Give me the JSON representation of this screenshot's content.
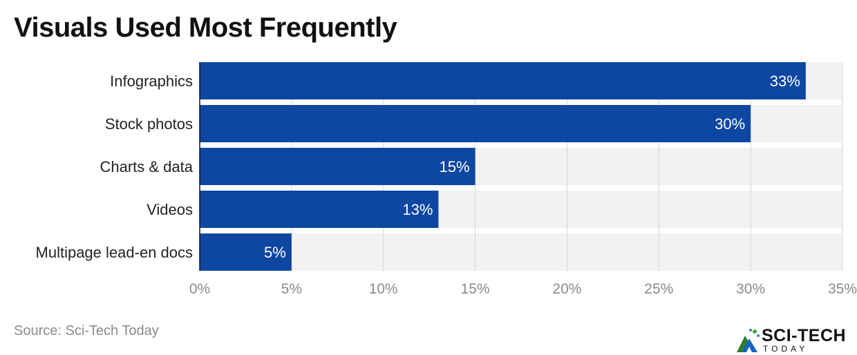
{
  "title": "Visuals Used Most Frequently",
  "source": "Source: Sci-Tech Today",
  "logo": {
    "main": "SCI-TECH",
    "sub": "TODAY"
  },
  "colors": {
    "bar": "#0d47a1",
    "track": "#f2f2f2",
    "grid": "#d4d4d4",
    "tick": "#8a8a8a",
    "label": "#222222",
    "value_label": "#ffffff"
  },
  "chart_data": {
    "type": "bar",
    "orientation": "horizontal",
    "categories": [
      "Infographics",
      "Stock photos",
      "Charts & data",
      "Videos",
      "Multipage lead-en docs"
    ],
    "values": [
      33,
      30,
      15,
      13,
      5
    ],
    "value_labels": [
      "33%",
      "30%",
      "15%",
      "13%",
      "5%"
    ],
    "xlim": [
      0,
      35
    ],
    "xticks": [
      0,
      5,
      10,
      15,
      20,
      25,
      30,
      35
    ],
    "xtick_labels": [
      "0%",
      "5%",
      "10%",
      "15%",
      "20%",
      "25%",
      "30%",
      "35%"
    ],
    "grid": true,
    "legend": false
  }
}
